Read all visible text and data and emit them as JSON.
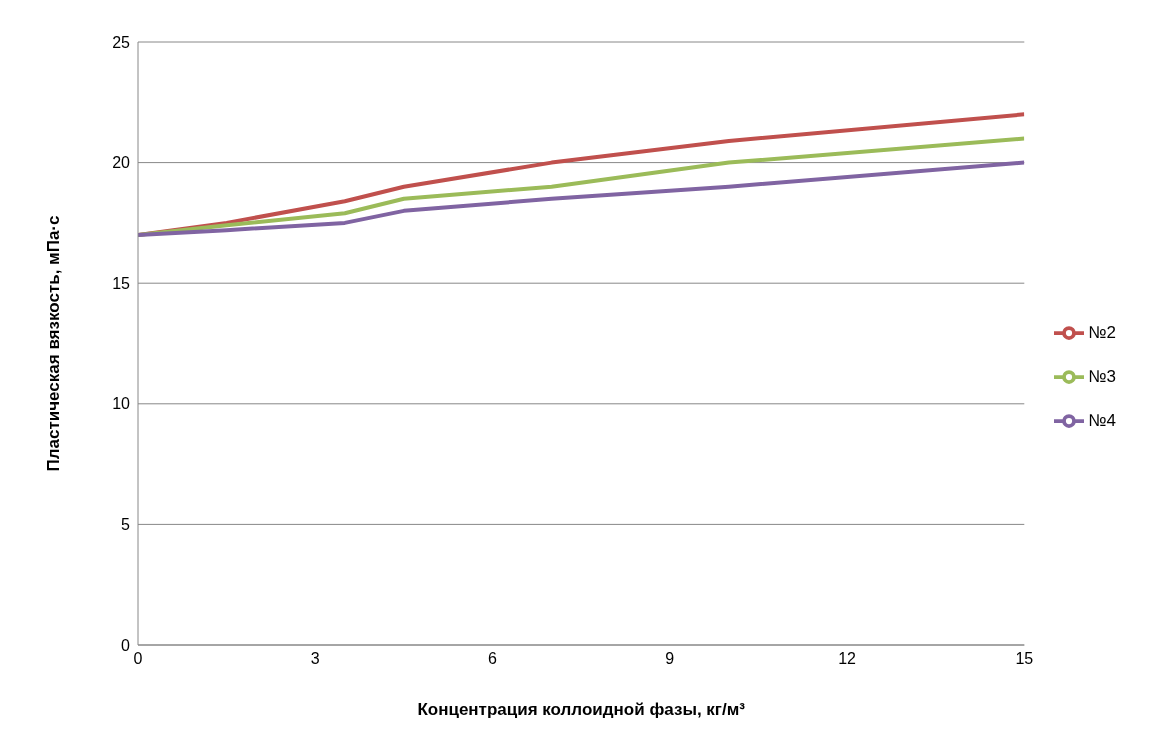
{
  "chart_data": {
    "type": "line",
    "xlabel": "Концентрация коллоидной фазы, кг/м³",
    "ylabel": "Пластическая вязкость, мПа·с",
    "x": [
      0,
      1.5,
      3.5,
      4.5,
      7,
      10,
      15
    ],
    "series": [
      {
        "name": "№2",
        "color": "#c0504d",
        "values": [
          17,
          17.5,
          18.4,
          19,
          20,
          20.9,
          22
        ]
      },
      {
        "name": "№3",
        "color": "#9bbb59",
        "values": [
          17,
          17.4,
          17.9,
          18.5,
          19,
          20,
          21
        ]
      },
      {
        "name": "№4",
        "color": "#8064a2",
        "values": [
          17,
          17.2,
          17.5,
          18,
          18.5,
          19,
          20
        ]
      }
    ],
    "xlim": [
      0,
      15
    ],
    "xticks": [
      0,
      3,
      6,
      9,
      12,
      15
    ],
    "ylim": [
      0,
      25
    ],
    "yticks": [
      0,
      5,
      10,
      15,
      20,
      25
    ],
    "grid": "y",
    "legend": "right",
    "marker": "none",
    "line_style": "solid"
  }
}
